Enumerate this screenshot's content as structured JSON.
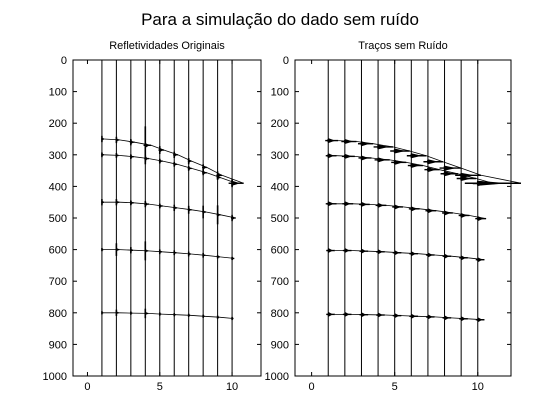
{
  "figure": {
    "suptitle": "Para a simulação do dado sem ruído"
  },
  "chart_data": [
    {
      "type": "line",
      "title": "Refletividades Originais",
      "xlabel": "",
      "ylabel": "",
      "xlim": [
        -1,
        12
      ],
      "ylim": [
        0,
        1000
      ],
      "y_reversed": true,
      "xticks": [
        0,
        5,
        10
      ],
      "yticks": [
        0,
        100,
        200,
        300,
        400,
        500,
        600,
        700,
        800,
        900,
        1000
      ],
      "grid": false,
      "legend": "none",
      "trace_positions": [
        1,
        2,
        3,
        4,
        5,
        6,
        7,
        8,
        9,
        10
      ],
      "series": [
        {
          "x": [
            1,
            2,
            3,
            4,
            5,
            6,
            7,
            8,
            9,
            10
          ],
          "y": [
            250,
            253,
            260,
            270,
            285,
            300,
            320,
            340,
            365,
            390
          ],
          "amplitude": [
            0.15,
            0.2,
            0.25,
            0.4,
            0.3,
            0.25,
            0.2,
            0.25,
            0.3,
            0.8
          ],
          "spike_height": [
            20,
            20,
            20,
            120,
            25,
            20,
            20,
            20,
            25,
            25
          ]
        },
        {
          "x": [
            1,
            2,
            3,
            4,
            5,
            6,
            7,
            8,
            9,
            10
          ],
          "y": [
            300,
            302,
            306,
            312,
            320,
            330,
            343,
            357,
            372,
            390
          ],
          "amplitude": [
            0.15,
            0.15,
            0.2,
            0.25,
            0.2,
            0.2,
            0.2,
            0.25,
            0.2,
            0.3
          ],
          "spike_height": [
            15,
            15,
            15,
            20,
            15,
            15,
            15,
            15,
            15,
            20
          ]
        },
        {
          "x": [
            1,
            2,
            3,
            4,
            5,
            6,
            7,
            8,
            9,
            10
          ],
          "y": [
            450,
            450,
            452,
            456,
            462,
            468,
            474,
            481,
            490,
            500
          ],
          "amplitude": [
            0.15,
            0.2,
            0.2,
            0.25,
            0.2,
            0.2,
            0.2,
            0.2,
            0.2,
            0.25
          ],
          "spike_height": [
            20,
            20,
            15,
            20,
            15,
            20,
            25,
            40,
            60,
            20
          ]
        },
        {
          "x": [
            1,
            2,
            3,
            4,
            5,
            6,
            7,
            8,
            9,
            10
          ],
          "y": [
            600,
            600,
            602,
            604,
            607,
            610,
            614,
            618,
            623,
            628
          ],
          "amplitude": [
            0.1,
            0.2,
            0.15,
            0.2,
            0.15,
            0.15,
            0.15,
            0.15,
            0.15,
            0.15
          ],
          "spike_height": [
            10,
            40,
            20,
            60,
            15,
            15,
            15,
            15,
            10,
            10
          ]
        },
        {
          "x": [
            1,
            2,
            3,
            4,
            5,
            6,
            7,
            8,
            9,
            10
          ],
          "y": [
            800,
            800,
            801,
            802,
            804,
            806,
            808,
            811,
            814,
            818
          ],
          "amplitude": [
            0.1,
            0.15,
            0.1,
            0.2,
            0.1,
            0.1,
            0.1,
            0.1,
            0.1,
            0.1
          ],
          "spike_height": [
            10,
            20,
            10,
            30,
            10,
            10,
            10,
            10,
            10,
            10
          ]
        }
      ]
    },
    {
      "type": "line",
      "title": "Traços sem Ruído",
      "xlabel": "",
      "ylabel": "",
      "xlim": [
        -1,
        12
      ],
      "ylim": [
        0,
        1000
      ],
      "y_reversed": true,
      "xticks": [
        0,
        5,
        10
      ],
      "yticks": [
        0,
        100,
        200,
        300,
        400,
        500,
        600,
        700,
        800,
        900,
        1000
      ],
      "grid": false,
      "legend": "none",
      "trace_positions": [
        1,
        2,
        3,
        4,
        5,
        6,
        7,
        8,
        9,
        10
      ],
      "series": [
        {
          "x": [
            1,
            2,
            3,
            4,
            5,
            6,
            7,
            8,
            9,
            10
          ],
          "y": [
            255,
            258,
            265,
            275,
            288,
            303,
            322,
            342,
            365,
            390
          ],
          "amplitude": [
            0.6,
            0.7,
            0.7,
            0.9,
            0.9,
            0.9,
            0.9,
            1.0,
            1.2,
            2.6
          ],
          "spike_height": [
            10,
            10,
            10,
            12,
            12,
            12,
            12,
            12,
            14,
            14
          ]
        },
        {
          "x": [
            1,
            2,
            3,
            4,
            5,
            6,
            7,
            8,
            9,
            10
          ],
          "y": [
            303,
            305,
            310,
            316,
            324,
            334,
            347,
            360,
            375,
            391
          ],
          "amplitude": [
            0.5,
            0.6,
            0.6,
            0.7,
            0.7,
            0.7,
            0.7,
            0.8,
            0.9,
            1.0
          ],
          "spike_height": [
            10,
            10,
            10,
            10,
            10,
            10,
            10,
            10,
            12,
            12
          ]
        },
        {
          "x": [
            1,
            2,
            3,
            4,
            5,
            6,
            7,
            8,
            9,
            10
          ],
          "y": [
            455,
            455,
            457,
            460,
            465,
            471,
            477,
            484,
            492,
            502
          ],
          "amplitude": [
            0.5,
            0.5,
            0.5,
            0.5,
            0.5,
            0.5,
            0.5,
            0.5,
            0.5,
            0.5
          ],
          "spike_height": [
            8,
            8,
            8,
            8,
            8,
            8,
            8,
            8,
            8,
            8
          ]
        },
        {
          "x": [
            1,
            2,
            3,
            4,
            5,
            6,
            7,
            8,
            9,
            10
          ],
          "y": [
            603,
            603,
            605,
            607,
            610,
            613,
            617,
            621,
            626,
            632
          ],
          "amplitude": [
            0.4,
            0.4,
            0.4,
            0.4,
            0.4,
            0.4,
            0.4,
            0.4,
            0.4,
            0.4
          ],
          "spike_height": [
            6,
            6,
            6,
            6,
            6,
            6,
            6,
            6,
            6,
            6
          ]
        },
        {
          "x": [
            1,
            2,
            3,
            4,
            5,
            6,
            7,
            8,
            9,
            10
          ],
          "y": [
            805,
            805,
            806,
            807,
            809,
            811,
            813,
            816,
            819,
            822
          ],
          "amplitude": [
            0.4,
            0.4,
            0.4,
            0.4,
            0.4,
            0.4,
            0.4,
            0.4,
            0.4,
            0.4
          ],
          "spike_height": [
            6,
            6,
            6,
            6,
            6,
            6,
            6,
            6,
            6,
            6
          ]
        }
      ]
    }
  ]
}
